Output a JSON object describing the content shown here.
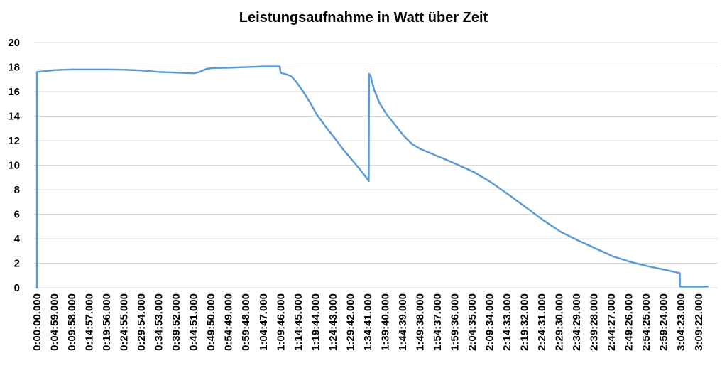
{
  "chart_data": {
    "type": "line",
    "title": "Leistungsaufnahme in Watt über Zeit",
    "xlabel": "",
    "ylabel": "",
    "ylim": [
      0,
      20
    ],
    "y_ticks": [
      0,
      2,
      4,
      6,
      8,
      10,
      12,
      14,
      16,
      18,
      20
    ],
    "x_tick_labels": [
      "0:00:00.000",
      "0:04:59.000",
      "0:09:58.000",
      "0:14:57.000",
      "0:19:56.000",
      "0:24:55.000",
      "0:29:54.000",
      "0:34:53.000",
      "0:39:52.000",
      "0:44:51.000",
      "0:49:50.000",
      "0:54:49.000",
      "0:59:48.000",
      "1:04:47.000",
      "1:09:46.000",
      "1:14:45.000",
      "1:19:44.000",
      "1:24:43.000",
      "1:29:42.000",
      "1:34:41.000",
      "1:39:40.000",
      "1:44:39.000",
      "1:49:38.000",
      "1:54:37.000",
      "1:59:36.000",
      "2:04:35.000",
      "2:09:34.000",
      "2:14:33.000",
      "2:19:32.000",
      "2:24:31.000",
      "2:29:30.000",
      "2:34:29.000",
      "2:39:28.000",
      "2:44:27.000",
      "2:49:26.000",
      "2:54:25.000",
      "2:59:24.000",
      "3:04:23.000",
      "3:09:22.000"
    ],
    "grid": true,
    "line_color": "#5b9bd5",
    "series": [
      {
        "name": "",
        "points": [
          [
            "0:00:00",
            0
          ],
          [
            "0:00:00",
            17.6
          ],
          [
            "0:02:00",
            17.65
          ],
          [
            "0:05:00",
            17.75
          ],
          [
            "0:10:00",
            17.8
          ],
          [
            "0:15:00",
            17.8
          ],
          [
            "0:20:00",
            17.8
          ],
          [
            "0:25:00",
            17.78
          ],
          [
            "0:30:00",
            17.72
          ],
          [
            "0:35:00",
            17.6
          ],
          [
            "0:40:00",
            17.55
          ],
          [
            "0:45:00",
            17.5
          ],
          [
            "0:46:30",
            17.6
          ],
          [
            "0:48:30",
            17.85
          ],
          [
            "0:50:30",
            17.93
          ],
          [
            "0:55:00",
            17.95
          ],
          [
            "1:00:00",
            18.0
          ],
          [
            "1:05:00",
            18.05
          ],
          [
            "1:09:30",
            18.05
          ],
          [
            "1:09:45",
            17.55
          ],
          [
            "1:12:00",
            17.35
          ],
          [
            "1:12:45",
            17.25
          ],
          [
            "1:14:00",
            16.9
          ],
          [
            "1:16:00",
            16.1
          ],
          [
            "1:18:00",
            15.2
          ],
          [
            "1:20:00",
            14.2
          ],
          [
            "1:22:30",
            13.2
          ],
          [
            "1:25:00",
            12.3
          ],
          [
            "1:27:30",
            11.35
          ],
          [
            "1:30:00",
            10.5
          ],
          [
            "1:32:30",
            9.65
          ],
          [
            "1:34:00",
            9.1
          ],
          [
            "1:35:00",
            8.7
          ],
          [
            "1:35:05",
            17.45
          ],
          [
            "1:35:30",
            17.3
          ],
          [
            "1:36:30",
            16.2
          ],
          [
            "1:38:00",
            15.1
          ],
          [
            "1:40:00",
            14.2
          ],
          [
            "1:42:30",
            13.3
          ],
          [
            "1:45:00",
            12.4
          ],
          [
            "1:47:30",
            11.7
          ],
          [
            "1:50:00",
            11.3
          ],
          [
            "1:55:00",
            10.7
          ],
          [
            "2:00:00",
            10.1
          ],
          [
            "2:05:00",
            9.45
          ],
          [
            "2:10:00",
            8.6
          ],
          [
            "2:15:00",
            7.6
          ],
          [
            "2:20:00",
            6.55
          ],
          [
            "2:25:00",
            5.5
          ],
          [
            "2:30:00",
            4.55
          ],
          [
            "2:35:00",
            3.85
          ],
          [
            "2:40:00",
            3.2
          ],
          [
            "2:45:00",
            2.55
          ],
          [
            "2:50:00",
            2.1
          ],
          [
            "2:55:00",
            1.75
          ],
          [
            "3:00:00",
            1.45
          ],
          [
            "3:04:00",
            1.2
          ],
          [
            "3:04:05",
            0.1
          ],
          [
            "3:12:00",
            0.1
          ]
        ]
      }
    ]
  }
}
